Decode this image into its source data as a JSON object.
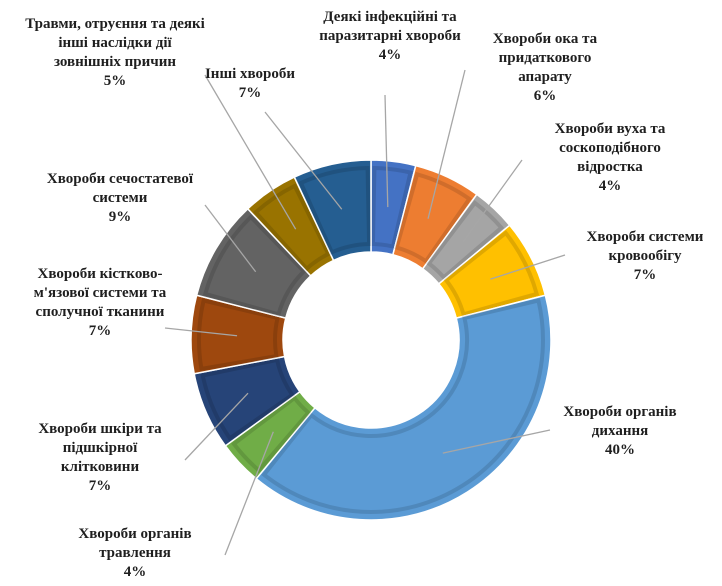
{
  "chart_data": {
    "type": "donut",
    "categories": [
      "Деякі інфекційні та паразитарні хвороби",
      "Хвороби ока та придаткового апарату",
      "Хвороби вуха та соскоподібного відростка",
      "Хвороби системи кровообігу",
      "Хвороби органів дихання",
      "Хвороби органів травлення",
      "Хвороби шкіри та підшкірної клітковини",
      "Хвороби кістково-м'язової системи та сполучної тканини",
      "Хвороби сечостатевої системи",
      "Травми, отруєння та деякі інші наслідки дії зовнішніх причин",
      "Інші хвороби"
    ],
    "values": [
      4,
      6,
      4,
      7,
      40,
      4,
      7,
      7,
      9,
      5,
      7
    ],
    "value_labels": [
      "4%",
      "6%",
      "4%",
      "7%",
      "40%",
      "4%",
      "7%",
      "7%",
      "9%",
      "5%",
      "7%"
    ],
    "colors": [
      "#4472c4",
      "#ed7d31",
      "#a5a5a5",
      "#ffc000",
      "#5b9bd5",
      "#70ad47",
      "#264478",
      "#9e480e",
      "#636363",
      "#997300",
      "#255e91"
    ]
  }
}
